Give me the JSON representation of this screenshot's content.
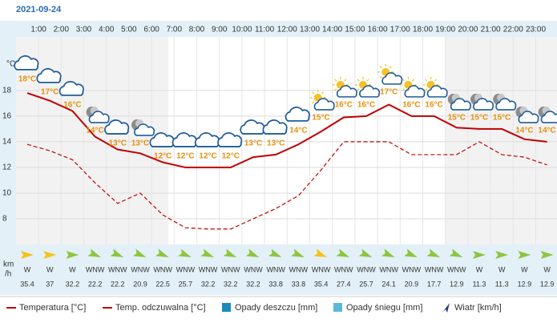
{
  "date": "2021-09-24",
  "chart_data": {
    "type": "line",
    "x_labels": [
      "1:00",
      "2:00",
      "3:00",
      "4:00",
      "5:00",
      "6:00",
      "7:00",
      "8:00",
      "9:00",
      "10:00",
      "11:00",
      "12:00",
      "13:00",
      "14:00",
      "15:00",
      "16:00",
      "17:00",
      "18:00",
      "19:00",
      "20:00",
      "21:00",
      "22:00",
      "23:00"
    ],
    "y_label": "°C",
    "ylim": [
      6,
      22.3
    ],
    "yticks": [
      8,
      10,
      12,
      14,
      16,
      18
    ],
    "grid": true,
    "series": [
      {
        "name": "Temperatura [°C]",
        "color": "#c00000",
        "dash": false,
        "values": [
          17.8,
          17.2,
          16.4,
          14.4,
          13.4,
          13.1,
          12.4,
          12.0,
          12.0,
          12.0,
          12.8,
          13.0,
          13.8,
          14.8,
          15.9,
          16.0,
          16.9,
          16.0,
          16.0,
          15.1,
          15.0,
          15.0,
          14.2,
          14.0
        ],
        "value_labels": [
          "18°C",
          "17°C",
          "16°C",
          "14°C",
          "13°C",
          "13°C",
          "12°C",
          "12°C",
          "12°C",
          "12°C",
          "13°C",
          "13°C",
          "14°C",
          "15°C",
          "16°C",
          "16°C",
          "17°C",
          "16°C",
          "16°C",
          "15°C",
          "15°C",
          "15°C",
          "14°C",
          "14°C"
        ]
      },
      {
        "name": "Temp. odczuwalna [°C]",
        "color": "#c00000",
        "dash": true,
        "values": [
          13.8,
          13.3,
          12.6,
          10.8,
          9.2,
          10.0,
          8.3,
          7.3,
          7.2,
          7.2,
          8.0,
          8.8,
          9.8,
          11.8,
          14.0,
          14.0,
          14.0,
          13.0,
          13.0,
          13.0,
          14.0,
          13.0,
          12.8,
          12.2
        ]
      }
    ],
    "legend_extra": [
      {
        "name": "Opady deszczu [mm]",
        "color": "#1a8bb8"
      },
      {
        "name": "Opady śniegu [mm]",
        "color": "#5bb8d6"
      },
      {
        "name": "Wiatr [km/h]",
        "color": "#1f3f6e"
      }
    ],
    "wind": {
      "unit": [
        "km",
        "/h"
      ],
      "directions": [
        "W",
        "W",
        "W",
        "WNW",
        "WNW",
        "WNW",
        "WNW",
        "WNW",
        "WNW",
        "WNW",
        "WNW",
        "WNW",
        "WNW",
        "WNW",
        "WNW",
        "WNW",
        "WNW",
        "WNW",
        "WNW",
        "WNW",
        "W",
        "W",
        "W",
        "W"
      ],
      "speeds": [
        35.4,
        37,
        32.2,
        22.2,
        22.2,
        20.9,
        22.5,
        25.7,
        32.2,
        32.2,
        32.2,
        33.8,
        33.8,
        35.4,
        27.4,
        25.7,
        24.1,
        20.9,
        17.7,
        12.9,
        11.3,
        11.3,
        12.9,
        12.9
      ]
    }
  }
}
